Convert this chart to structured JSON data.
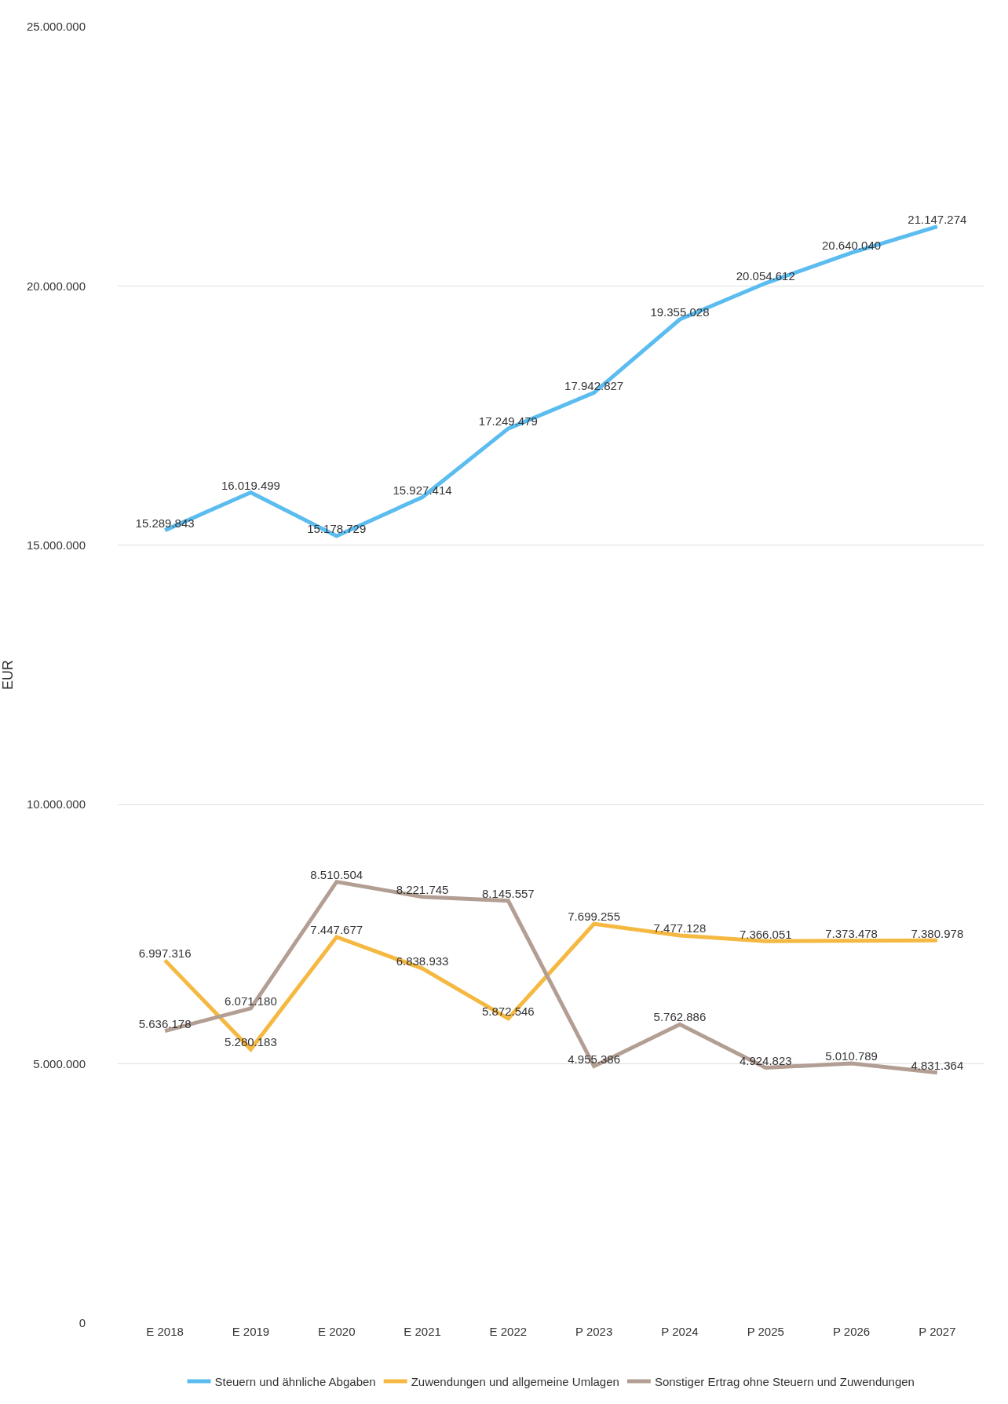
{
  "chart_data": {
    "type": "line",
    "ylabel": "EUR",
    "categories": [
      "E 2018",
      "E 2019",
      "E 2020",
      "E 2021",
      "E 2022",
      "P 2023",
      "P 2024",
      "P 2025",
      "P 2026",
      "P 2027"
    ],
    "series": [
      {
        "name": "Steuern und ähnliche Abgaben",
        "color": "#5bbcf0",
        "values": [
          15289843,
          16019499,
          15178729,
          15927414,
          17249479,
          17942827,
          19355028,
          20054612,
          20640040,
          21147274
        ],
        "value_labels": [
          "15.289.843",
          "16.019.499",
          "15.178.729",
          "15.927.414",
          "17.249.479",
          "17.942.827",
          "19.355.028",
          "20.054.612",
          "20.640.040",
          "21.147.274"
        ]
      },
      {
        "name": "Zuwendungen und allgemeine Umlagen",
        "color": "#f5b942",
        "values": [
          6997316,
          5280183,
          7447677,
          6838933,
          5872546,
          7699255,
          7477128,
          7366051,
          7373478,
          7380978
        ],
        "value_labels": [
          "6.997.316",
          "5.280.183",
          "7.447.677",
          "6.838.933",
          "5.872.546",
          "7.699.255",
          "7.477.128",
          "7.366.051",
          "7.373.478",
          "7.380.978"
        ]
      },
      {
        "name": "Sonstiger Ertrag ohne Steuern und Zuwendungen",
        "color": "#b39e94",
        "values": [
          5636178,
          6071180,
          8510504,
          8221745,
          8145557,
          4955386,
          5762886,
          4924823,
          5010789,
          4831364
        ],
        "value_labels": [
          "5.636.178",
          "6.071.180",
          "8.510.504",
          "8.221.745",
          "8.145.557",
          "4.955.386",
          "5.762.886",
          "4.924.823",
          "5.010.789",
          "4.831.364"
        ]
      }
    ],
    "ylim": [
      0,
      25000000
    ],
    "yticks": [
      0,
      {
        "value": 5000000,
        "label": "5.000.000"
      },
      {
        "value": 10000000,
        "label": "10.000.000"
      },
      {
        "value": 15000000,
        "label": "15.000.000"
      },
      {
        "value": 20000000,
        "label": "20.000.000"
      },
      {
        "value": 25000000,
        "label": "25.000.000"
      }
    ],
    "grid": "y",
    "legend": "bottom",
    "marker": "none",
    "line_style": "solid"
  }
}
